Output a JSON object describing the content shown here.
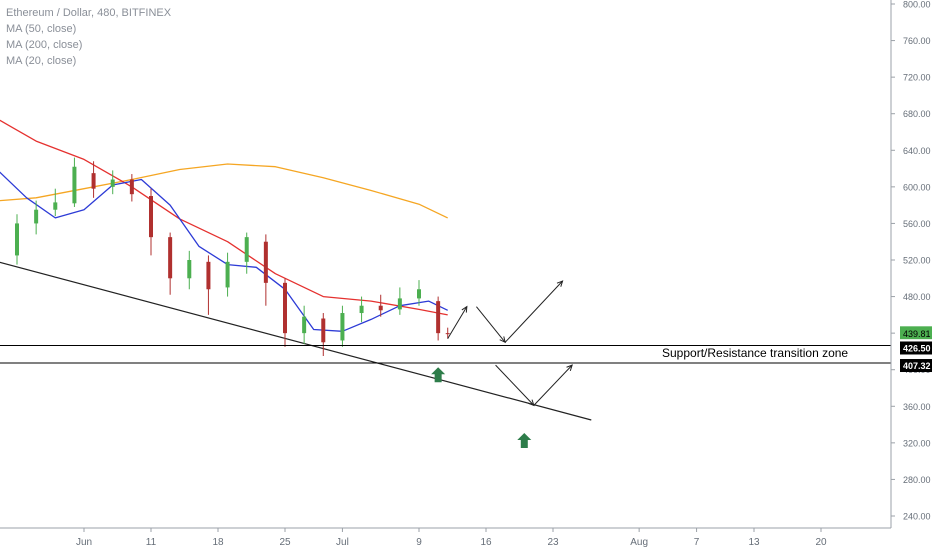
{
  "symbol": "Ethereum / Dollar, 480, BITFINEX",
  "indicators": [
    "MA (50, close)",
    "MA (200, close)",
    "MA (20, close)"
  ],
  "annotation": "Support/Resistance transition zone",
  "price_labels": {
    "last_price": "439.81",
    "countdown": "06:59:25",
    "zone_top": "426.50",
    "zone_bottom": "407.32"
  },
  "colors": {
    "up": "#4caf50",
    "down": "#b0302f",
    "ma50": "#e5312f",
    "ma200": "#f5a623",
    "ma20": "#2d3bd6",
    "last_price_bg": "#4caf50",
    "level_bg": "#000000",
    "up_arrow": "#2e7d4a"
  },
  "chart_data": {
    "type": "line",
    "title": "Ethereum / Dollar, 480, BITFINEX",
    "y_axis": {
      "ticks": [
        "800.00",
        "760.00",
        "720.00",
        "680.00",
        "640.00",
        "600.00",
        "560.00",
        "520.00",
        "480.00",
        "440.00",
        "400.00",
        "360.00",
        "320.00",
        "280.00",
        "240.00"
      ],
      "range": [
        226,
        804
      ]
    },
    "x_axis": {
      "ticks": [
        "Jun",
        "11",
        "18",
        "25",
        "Jul",
        "9",
        "16",
        "23",
        "Aug",
        "7",
        "13",
        "20"
      ]
    },
    "levels": [
      {
        "name": "zone_top",
        "value": 426.5
      },
      {
        "name": "zone_bottom",
        "value": 407.32
      },
      {
        "name": "last_price",
        "value": 439.81
      }
    ],
    "trendline": {
      "from": {
        "date": "May 26",
        "price": 518
      },
      "to": {
        "date": "Jul 27",
        "price": 345
      }
    },
    "series": [
      {
        "name": "MA (200, close)",
        "x": [
          "May 20",
          "May 25",
          "May 30",
          "Jun 4",
          "Jun 9",
          "Jun 14",
          "Jun 19",
          "Jun 24",
          "Jun 29",
          "Jul 4",
          "Jul 9",
          "Jul 12"
        ],
        "values": [
          580,
          584,
          588,
          598,
          608,
          619,
          625,
          622,
          610,
          596,
          581,
          566
        ]
      },
      {
        "name": "MA (50, close)",
        "x": [
          "May 20",
          "May 25",
          "May 30",
          "Jun 4",
          "Jun 9",
          "Jun 14",
          "Jun 19",
          "Jun 24",
          "Jun 29",
          "Jul 4",
          "Jul 9",
          "Jul 12"
        ],
        "values": [
          715,
          680,
          650,
          630,
          600,
          565,
          540,
          505,
          480,
          475,
          466,
          460
        ]
      },
      {
        "name": "MA (20, close)",
        "x": [
          "May 20",
          "May 23",
          "May 26",
          "May 29",
          "Jun 1",
          "Jun 4",
          "Jun 7",
          "Jun 10",
          "Jun 13",
          "Jun 16",
          "Jun 19",
          "Jun 22",
          "Jun 25",
          "Jun 28",
          "Jul 1",
          "Jul 4",
          "Jul 7",
          "Jul 10",
          "Jul 12"
        ],
        "values": [
          695,
          655,
          618,
          588,
          566,
          575,
          602,
          608,
          580,
          535,
          515,
          512,
          488,
          444,
          442,
          455,
          470,
          475,
          465
        ]
      }
    ],
    "candles": [
      {
        "date": "May 20",
        "open": 632,
        "close": 618,
        "high": 640,
        "low": 585
      },
      {
        "date": "May 22",
        "open": 600,
        "close": 615,
        "high": 620,
        "low": 580
      },
      {
        "date": "May 24",
        "open": 608,
        "close": 580,
        "high": 615,
        "low": 540
      },
      {
        "date": "May 26",
        "open": 575,
        "close": 520,
        "high": 585,
        "low": 500
      },
      {
        "date": "May 28",
        "open": 525,
        "close": 560,
        "high": 570,
        "low": 515
      },
      {
        "date": "May 30",
        "open": 560,
        "close": 575,
        "high": 585,
        "low": 548
      },
      {
        "date": "Jun 1",
        "open": 575,
        "close": 583,
        "high": 598,
        "low": 568
      },
      {
        "date": "Jun 3",
        "open": 582,
        "close": 622,
        "high": 632,
        "low": 578
      },
      {
        "date": "Jun 5",
        "open": 615,
        "close": 598,
        "high": 628,
        "low": 588
      },
      {
        "date": "Jun 7",
        "open": 600,
        "close": 608,
        "high": 618,
        "low": 592
      },
      {
        "date": "Jun 9",
        "open": 608,
        "close": 592,
        "high": 614,
        "low": 584
      },
      {
        "date": "Jun 11",
        "open": 590,
        "close": 545,
        "high": 598,
        "low": 525
      },
      {
        "date": "Jun 13",
        "open": 545,
        "close": 500,
        "high": 550,
        "low": 482
      },
      {
        "date": "Jun 15",
        "open": 500,
        "close": 520,
        "high": 530,
        "low": 488
      },
      {
        "date": "Jun 17",
        "open": 518,
        "close": 488,
        "high": 525,
        "low": 460
      },
      {
        "date": "Jun 19",
        "open": 490,
        "close": 518,
        "high": 528,
        "low": 480
      },
      {
        "date": "Jun 21",
        "open": 518,
        "close": 545,
        "high": 550,
        "low": 505
      },
      {
        "date": "Jun 23",
        "open": 540,
        "close": 495,
        "high": 548,
        "low": 470
      },
      {
        "date": "Jun 25",
        "open": 495,
        "close": 440,
        "high": 500,
        "low": 425
      },
      {
        "date": "Jun 27",
        "open": 440,
        "close": 458,
        "high": 470,
        "low": 428
      },
      {
        "date": "Jun 29",
        "open": 456,
        "close": 430,
        "high": 462,
        "low": 415
      },
      {
        "date": "Jul 1",
        "open": 432,
        "close": 462,
        "high": 470,
        "low": 425
      },
      {
        "date": "Jul 3",
        "open": 462,
        "close": 470,
        "high": 480,
        "low": 452
      },
      {
        "date": "Jul 5",
        "open": 470,
        "close": 465,
        "high": 482,
        "low": 458
      },
      {
        "date": "Jul 7",
        "open": 466,
        "close": 478,
        "high": 490,
        "low": 460
      },
      {
        "date": "Jul 9",
        "open": 478,
        "close": 488,
        "high": 498,
        "low": 470
      },
      {
        "date": "Jul 11",
        "open": 475,
        "close": 440,
        "high": 480,
        "low": 432
      },
      {
        "date": "Jul 12",
        "open": 440,
        "close": 439.81,
        "high": 446,
        "low": 434
      }
    ]
  }
}
